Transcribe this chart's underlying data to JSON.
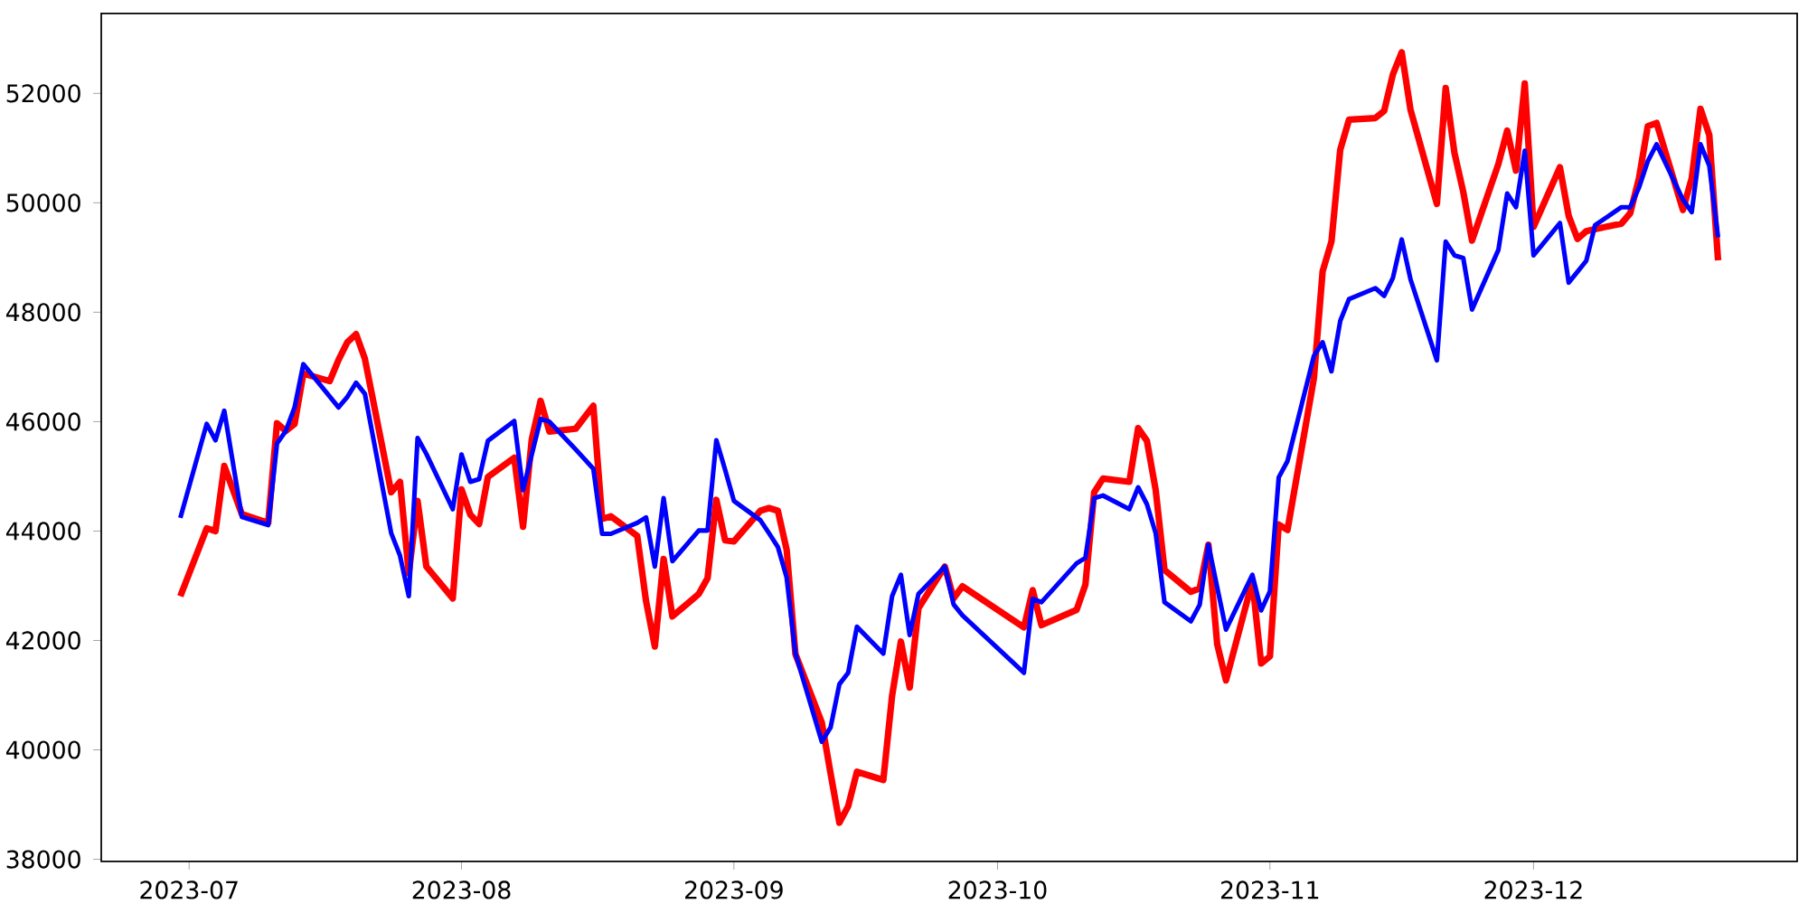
{
  "chart_data": {
    "type": "line",
    "x": [
      "2023-06-30",
      "2023-07-03",
      "2023-07-04",
      "2023-07-05",
      "2023-07-07",
      "2023-07-10",
      "2023-07-11",
      "2023-07-12",
      "2023-07-13",
      "2023-07-14",
      "2023-07-17",
      "2023-07-18",
      "2023-07-19",
      "2023-07-20",
      "2023-07-21",
      "2023-07-24",
      "2023-07-25",
      "2023-07-26",
      "2023-07-27",
      "2023-07-28",
      "2023-07-31",
      "2023-08-01",
      "2023-08-02",
      "2023-08-03",
      "2023-08-04",
      "2023-08-07",
      "2023-08-08",
      "2023-08-09",
      "2023-08-10",
      "2023-08-11",
      "2023-08-14",
      "2023-08-16",
      "2023-08-17",
      "2023-08-18",
      "2023-08-21",
      "2023-08-22",
      "2023-08-23",
      "2023-08-24",
      "2023-08-25",
      "2023-08-28",
      "2023-08-29",
      "2023-08-30",
      "2023-08-31",
      "2023-09-01",
      "2023-09-04",
      "2023-09-05",
      "2023-09-06",
      "2023-09-07",
      "2023-09-08",
      "2023-09-11",
      "2023-09-12",
      "2023-09-13",
      "2023-09-14",
      "2023-09-15",
      "2023-09-18",
      "2023-09-19",
      "2023-09-20",
      "2023-09-21",
      "2023-09-22",
      "2023-09-25",
      "2023-09-26",
      "2023-09-27",
      "2023-10-04",
      "2023-10-05",
      "2023-10-06",
      "2023-10-10",
      "2023-10-11",
      "2023-10-12",
      "2023-10-13",
      "2023-10-16",
      "2023-10-17",
      "2023-10-18",
      "2023-10-19",
      "2023-10-20",
      "2023-10-23",
      "2023-10-24",
      "2023-10-25",
      "2023-10-26",
      "2023-10-27",
      "2023-10-30",
      "2023-10-31",
      "2023-11-01",
      "2023-11-02",
      "2023-11-03",
      "2023-11-06",
      "2023-11-07",
      "2023-11-08",
      "2023-11-09",
      "2023-11-10",
      "2023-11-13",
      "2023-11-14",
      "2023-11-15",
      "2023-11-16",
      "2023-11-17",
      "2023-11-20",
      "2023-11-21",
      "2023-11-22",
      "2023-11-23",
      "2023-11-24",
      "2023-11-27",
      "2023-11-28",
      "2023-11-29",
      "2023-11-30",
      "2023-12-01",
      "2023-12-04",
      "2023-12-05",
      "2023-12-06",
      "2023-12-07",
      "2023-12-08",
      "2023-12-11",
      "2023-12-12",
      "2023-12-13",
      "2023-12-14",
      "2023-12-15",
      "2023-12-18",
      "2023-12-19",
      "2023-12-20",
      "2023-12-21",
      "2023-12-22"
    ],
    "series": [
      {
        "color": "#ff0000",
        "values": [
          42810,
          44050,
          44000,
          45190,
          44310,
          44150,
          45970,
          45830,
          45960,
          46880,
          46740,
          47130,
          47450,
          47600,
          47150,
          44710,
          44900,
          43230,
          44550,
          43350,
          42770,
          44760,
          44300,
          44130,
          44990,
          45340,
          44080,
          45680,
          46380,
          45820,
          45870,
          46290,
          44220,
          44270,
          43910,
          42720,
          41890,
          43490,
          42440,
          42850,
          43140,
          44570,
          43830,
          43810,
          44370,
          44420,
          44370,
          43660,
          41750,
          40500,
          39570,
          38670,
          38970,
          39600,
          39450,
          40990,
          41980,
          41140,
          42590,
          43350,
          42770,
          42990,
          42240,
          42920,
          42280,
          42560,
          43020,
          44710,
          44960,
          44900,
          45880,
          45650,
          44750,
          43290,
          42890,
          42950,
          43750,
          41930,
          41270,
          43080,
          41580,
          41710,
          44120,
          44020,
          46790,
          48750,
          49290,
          50970,
          51520,
          51550,
          51680,
          52350,
          52750,
          51700,
          49980,
          52100,
          50910,
          50200,
          49310,
          50710,
          51320,
          50590,
          52180,
          49560,
          50650,
          49760,
          49340,
          49480,
          49520,
          49620,
          49810,
          50450,
          51400,
          51460,
          49870,
          50450,
          51720,
          51240,
          48950
        ]
      },
      {
        "color": "#0000ff",
        "values": [
          44240,
          45960,
          45660,
          46200,
          44260,
          44110,
          45600,
          45830,
          46260,
          47050,
          46460,
          46260,
          46450,
          46710,
          46510,
          43960,
          43550,
          42810,
          45700,
          45410,
          44400,
          45400,
          44900,
          44950,
          45650,
          46010,
          44750,
          45400,
          46050,
          46000,
          45490,
          45140,
          43950,
          43950,
          44150,
          44250,
          43350,
          44600,
          43450,
          44010,
          44010,
          45660,
          45120,
          44550,
          44200,
          43960,
          43710,
          43150,
          41760,
          40150,
          40410,
          41200,
          41410,
          42250,
          41760,
          42810,
          43200,
          42100,
          42850,
          43350,
          42660,
          42460,
          41410,
          42760,
          42700,
          43410,
          43510,
          44600,
          44650,
          44400,
          44800,
          44490,
          43960,
          42700,
          42350,
          42650,
          43750,
          42970,
          42200,
          43200,
          42550,
          42900,
          44980,
          45280,
          47200,
          47450,
          46920,
          47840,
          48240,
          48440,
          48300,
          48630,
          49330,
          48600,
          47120,
          49290,
          49040,
          48990,
          48050,
          49140,
          50170,
          49920,
          50950,
          49040,
          49630,
          48540,
          48740,
          48940,
          49590,
          49920,
          49920,
          50280,
          50760,
          51070,
          50060,
          49830,
          51070,
          50680,
          49370
        ]
      }
    ],
    "xlim": [
      "2023-06-21",
      "2023-12-31"
    ],
    "xticks": [
      "2023-07",
      "2023-08",
      "2023-09",
      "2023-10",
      "2023-11",
      "2023-12"
    ],
    "ylim": [
      37960,
      53460
    ],
    "yticks": [
      38000,
      40000,
      42000,
      44000,
      46000,
      48000,
      50000,
      52000
    ]
  }
}
